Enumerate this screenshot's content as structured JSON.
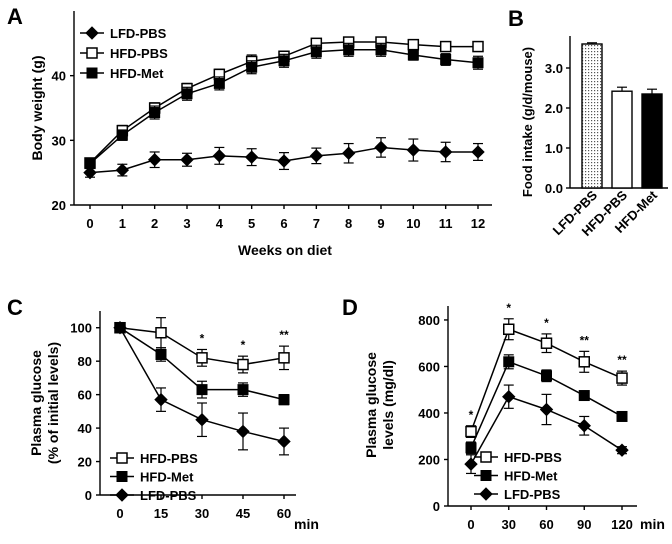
{
  "chart_data": [
    {
      "panel": "A",
      "type": "line",
      "xlabel": "Weeks on diet",
      "ylabel": "Body weight (g)",
      "ylim": [
        20,
        50
      ],
      "yticks": [
        20,
        30,
        40
      ],
      "xticks": [
        0,
        1,
        2,
        3,
        4,
        5,
        6,
        7,
        8,
        9,
        10,
        11,
        12
      ],
      "x": [
        0,
        1,
        2,
        3,
        4,
        5,
        6,
        7,
        8,
        9,
        10,
        11,
        12
      ],
      "legend_position": "top-left",
      "series": [
        {
          "name": "LFD-PBS",
          "marker": "diamond",
          "values": [
            25.0,
            25.4,
            27.0,
            27.0,
            27.6,
            27.4,
            26.8,
            27.6,
            28.0,
            28.9,
            28.5,
            28.2,
            28.2
          ],
          "errors": [
            0.7,
            0.9,
            1.2,
            1.0,
            1.3,
            1.3,
            1.3,
            1.2,
            1.5,
            1.5,
            1.7,
            1.5,
            1.3
          ]
        },
        {
          "name": "HFD-PBS",
          "marker": "open-square",
          "values": [
            26.5,
            31.5,
            35.0,
            38.0,
            40.2,
            42.2,
            43.0,
            45.0,
            45.2,
            45.2,
            44.8,
            44.5,
            44.5
          ],
          "errors": [
            0.6,
            0.8,
            0.8,
            0.8,
            0.8,
            1.0,
            0.8,
            0.7,
            0.7,
            0.7,
            0.6,
            0.6,
            0.6
          ]
        },
        {
          "name": "HFD-Met",
          "marker": "filled-square",
          "values": [
            26.4,
            30.8,
            34.3,
            37.2,
            38.8,
            41.3,
            42.3,
            43.7,
            44.0,
            44.0,
            43.2,
            42.5,
            42.0
          ],
          "errors": [
            0.6,
            0.8,
            1.0,
            1.0,
            1.0,
            1.0,
            1.0,
            1.0,
            1.0,
            1.0,
            0.8,
            0.9,
            1.0
          ]
        }
      ]
    },
    {
      "panel": "B",
      "type": "bar",
      "ylabel": "Food intake (g/d/mouse)",
      "ylim": [
        0,
        3.8
      ],
      "yticks": [
        "0.0",
        "1.0",
        "2.0",
        "3.0"
      ],
      "categories": [
        "LFD-PBS",
        "HFD-PBS",
        "HFD-Met"
      ],
      "values": [
        3.6,
        2.42,
        2.35
      ],
      "errors": [
        0.03,
        0.1,
        0.12
      ],
      "fills": [
        "dotted",
        "white",
        "black"
      ]
    },
    {
      "panel": "C",
      "type": "line",
      "xlabel": "min",
      "ylabel": "Plasma glucose (% of initial levels)",
      "ylim": [
        0,
        110
      ],
      "yticks": [
        0,
        20,
        40,
        60,
        80,
        100
      ],
      "xticks": [
        0,
        15,
        30,
        45,
        60
      ],
      "x": [
        0,
        15,
        30,
        45,
        60
      ],
      "legend_position": "bottom-left",
      "significance": [
        {
          "x": 30,
          "label": "*"
        },
        {
          "x": 45,
          "label": "*"
        },
        {
          "x": 60,
          "label": "**"
        }
      ],
      "series": [
        {
          "name": "HFD-PBS",
          "marker": "open-square",
          "values": [
            100,
            97,
            82,
            78,
            82
          ],
          "errors": [
            0,
            9,
            5,
            5,
            7
          ]
        },
        {
          "name": "HFD-Met",
          "marker": "filled-square",
          "values": [
            100,
            84,
            63,
            63,
            57
          ],
          "errors": [
            0,
            4,
            5,
            4,
            3
          ]
        },
        {
          "name": "LFD-PBS",
          "marker": "diamond",
          "values": [
            100,
            57,
            45,
            38,
            32
          ],
          "errors": [
            0,
            7,
            10,
            11,
            8
          ]
        }
      ]
    },
    {
      "panel": "D",
      "type": "line",
      "xlabel": "min",
      "ylabel": "Plasma glucose levels (mg/dl)",
      "ylim": [
        0,
        860
      ],
      "yticks": [
        0,
        200,
        400,
        600,
        800
      ],
      "xticks": [
        0,
        30,
        60,
        90,
        120
      ],
      "x": [
        0,
        30,
        60,
        90,
        120
      ],
      "legend_position": "bottom-center",
      "significance": [
        {
          "x": 0,
          "label": "*"
        },
        {
          "x": 30,
          "label": "*"
        },
        {
          "x": 60,
          "label": "*"
        },
        {
          "x": 90,
          "label": "**"
        },
        {
          "x": 120,
          "label": "**"
        }
      ],
      "series": [
        {
          "name": "HFD-PBS",
          "marker": "open-square",
          "values": [
            320,
            760,
            700,
            620,
            550
          ],
          "errors": [
            25,
            45,
            40,
            45,
            30
          ]
        },
        {
          "name": "HFD-Met",
          "marker": "filled-square",
          "values": [
            250,
            620,
            560,
            475,
            385
          ],
          "errors": [
            25,
            30,
            25,
            15,
            15
          ]
        },
        {
          "name": "LFD-PBS",
          "marker": "diamond",
          "values": [
            180,
            470,
            415,
            345,
            240
          ],
          "errors": [
            40,
            50,
            65,
            40,
            15
          ]
        }
      ]
    }
  ]
}
